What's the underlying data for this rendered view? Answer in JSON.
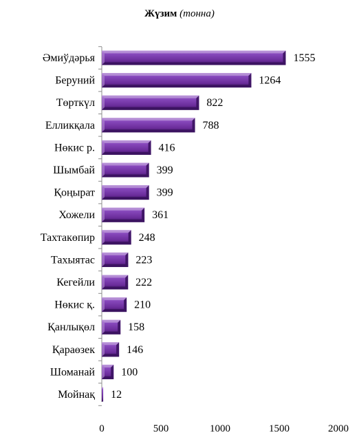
{
  "chart_data": {
    "type": "bar",
    "orientation": "horizontal",
    "title": "Жүзим",
    "subtitle": "(тонна)",
    "categories": [
      "Әмиўдәрья",
      "Беруний",
      "Төрткүл",
      "Елликқала",
      "Нөкис р.",
      "Шымбай",
      "Қоңырат",
      "Хожели",
      "Тахтакөпир",
      "Тахыятас",
      "Кегейли",
      "Нөкис қ.",
      "Қанлықөл",
      "Қараөзек",
      "Шоманай",
      "Мойнақ"
    ],
    "values": [
      1555,
      1264,
      822,
      788,
      416,
      399,
      399,
      361,
      248,
      223,
      222,
      210,
      158,
      146,
      100,
      12
    ],
    "xlim": [
      0,
      2000
    ],
    "xticks": [
      "0",
      "500",
      "1000",
      "1500",
      "2000"
    ],
    "grid": false,
    "legend": false,
    "colors": {
      "bar_base": "#7030A0",
      "bar_light": "#B690D6",
      "bar_dark": "#3B1360",
      "axis": "#8C8C8C"
    }
  }
}
